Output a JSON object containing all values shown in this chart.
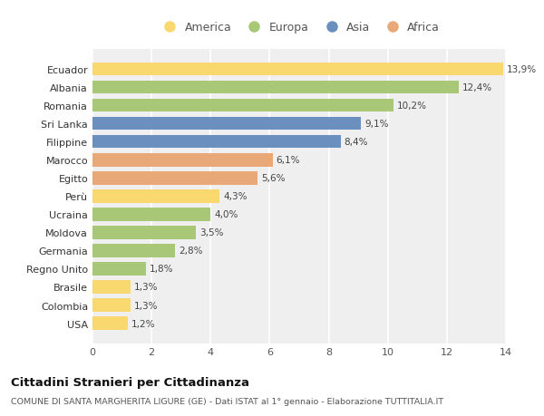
{
  "countries": [
    "Ecuador",
    "Albania",
    "Romania",
    "Sri Lanka",
    "Filippine",
    "Marocco",
    "Egitto",
    "Perù",
    "Ucraina",
    "Moldova",
    "Germania",
    "Regno Unito",
    "Brasile",
    "Colombia",
    "USA"
  ],
  "values": [
    13.9,
    12.4,
    10.2,
    9.1,
    8.4,
    6.1,
    5.6,
    4.3,
    4.0,
    3.5,
    2.8,
    1.8,
    1.3,
    1.3,
    1.2
  ],
  "labels": [
    "13,9%",
    "12,4%",
    "10,2%",
    "9,1%",
    "8,4%",
    "6,1%",
    "5,6%",
    "4,3%",
    "4,0%",
    "3,5%",
    "2,8%",
    "1,8%",
    "1,3%",
    "1,3%",
    "1,2%"
  ],
  "continents": [
    "America",
    "Europa",
    "Europa",
    "Asia",
    "Asia",
    "Africa",
    "Africa",
    "America",
    "Europa",
    "Europa",
    "Europa",
    "Europa",
    "America",
    "America",
    "America"
  ],
  "colors": {
    "America": "#F9D870",
    "Europa": "#A8C878",
    "Asia": "#6B8FBF",
    "Africa": "#E8A878"
  },
  "legend_order": [
    "America",
    "Europa",
    "Asia",
    "Africa"
  ],
  "title": "Cittadini Stranieri per Cittadinanza",
  "subtitle": "COMUNE DI SANTA MARGHERITA LIGURE (GE) - Dati ISTAT al 1° gennaio - Elaborazione TUTTITALIA.IT",
  "xlim": [
    0,
    14
  ],
  "xticks": [
    0,
    2,
    4,
    6,
    8,
    10,
    12,
    14
  ],
  "bg_color": "#ffffff",
  "plot_bg_color": "#efefef",
  "grid_color": "#ffffff",
  "bar_height": 0.72
}
